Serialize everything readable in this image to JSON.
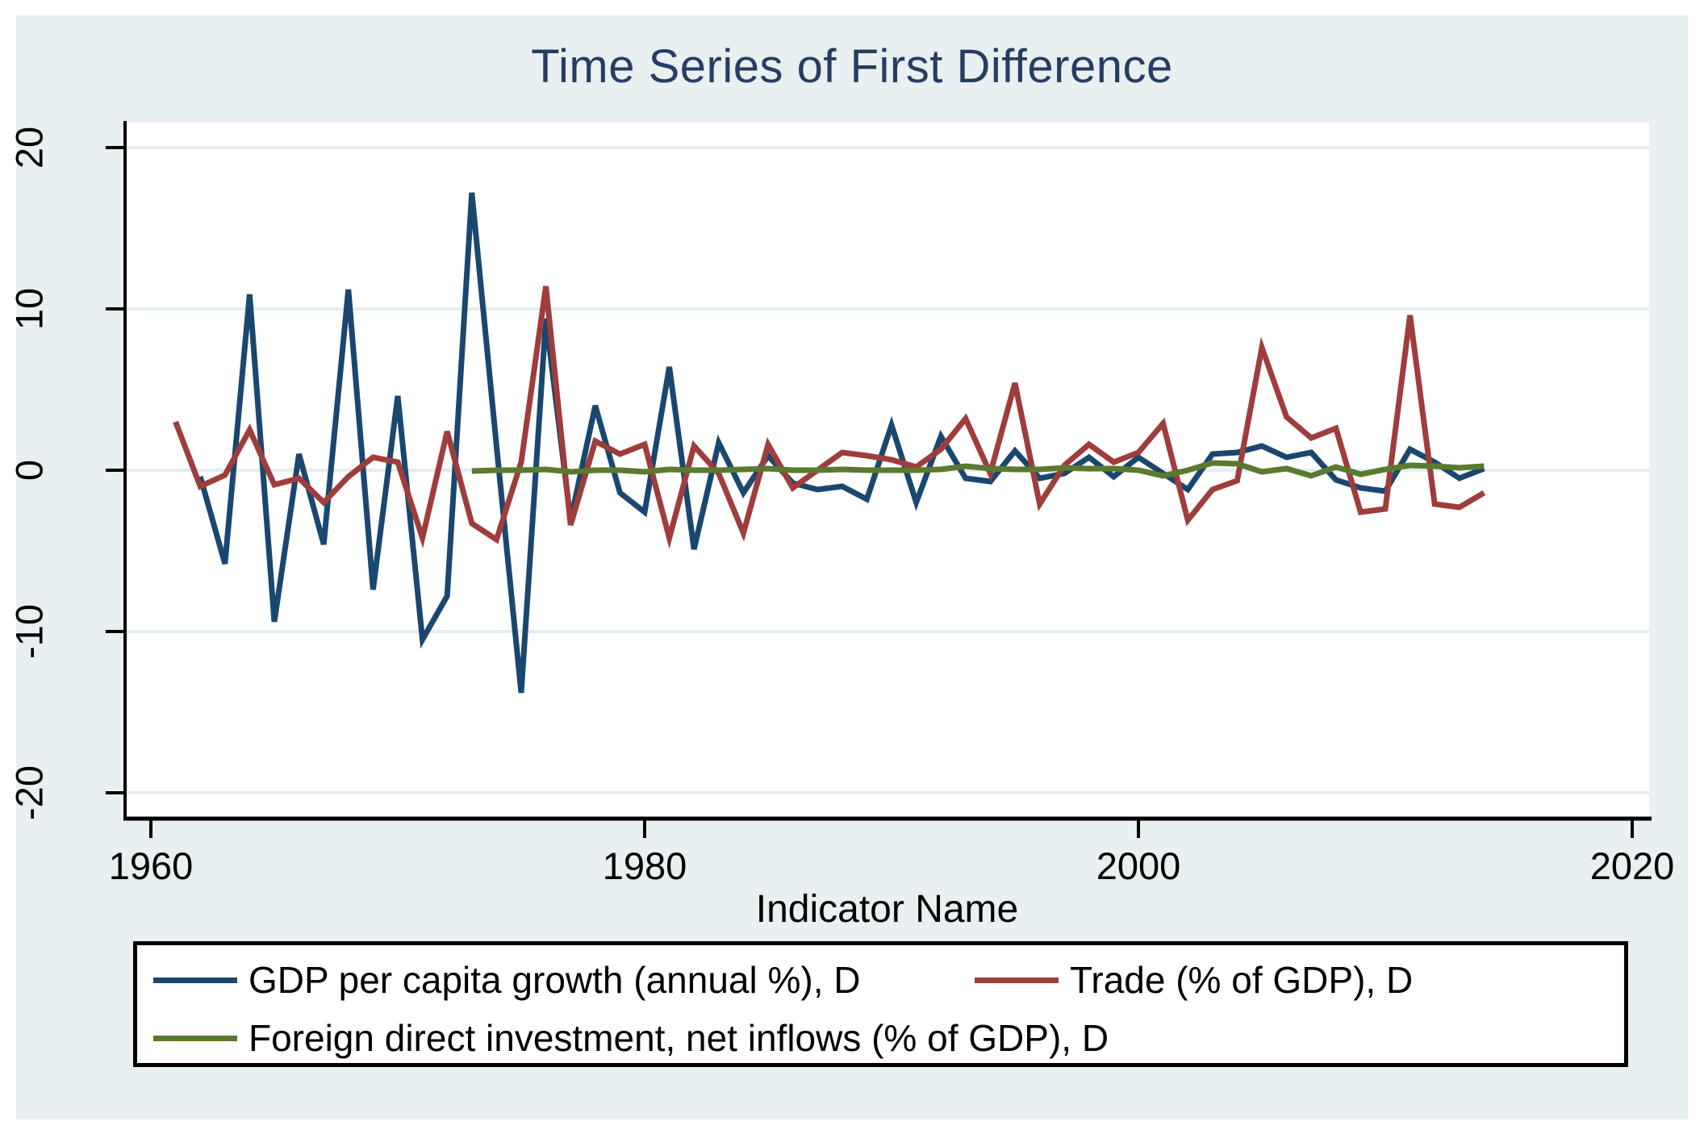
{
  "style": {
    "figure_bg": "#e9f0f2",
    "plot_bg": "#ffffff",
    "grid_color": "#e4edf0",
    "axis_color": "#000000",
    "title_color": "#263c63",
    "text_color": "#000000",
    "legend_bg": "#ffffff",
    "legend_border": "#000000"
  },
  "chart_data": {
    "type": "line",
    "title": "Time Series of First Difference",
    "xlabel": "Indicator Name",
    "ylabel": "",
    "xlim": [
      1959,
      2021
    ],
    "ylim": [
      -21.5,
      21.6
    ],
    "grid": "horizontal-only",
    "legend_position": "bottom",
    "x_ticks": [
      {
        "value": 1960,
        "label": "1960"
      },
      {
        "value": 1980,
        "label": "1980"
      },
      {
        "value": 2000,
        "label": "2000"
      },
      {
        "value": 2020,
        "label": "2020"
      }
    ],
    "y_ticks": [
      {
        "value": 20,
        "label": "20"
      },
      {
        "value": 10,
        "label": "10"
      },
      {
        "value": 0,
        "label": "0"
      },
      {
        "value": -10,
        "label": "-10"
      },
      {
        "value": -20,
        "label": "-20"
      }
    ],
    "series": [
      {
        "name": "GDP per capita growth (annual %), D",
        "color": "#1a476f",
        "start_year": 1962,
        "end_year": 2014,
        "values": [
          -0.4,
          -5.8,
          10.9,
          -9.4,
          1.0,
          -4.6,
          11.2,
          -7.4,
          4.6,
          -10.5,
          -7.8,
          17.2,
          1.5,
          -13.8,
          9.4,
          -3.1,
          4.0,
          -1.4,
          -2.6,
          6.4,
          -4.9,
          1.7,
          -1.4,
          0.9,
          -0.8,
          -1.2,
          -1.0,
          -1.8,
          2.8,
          -2.0,
          2.1,
          -0.5,
          -0.7,
          1.2,
          -0.5,
          -0.2,
          0.8,
          -0.4,
          0.8,
          -0.2,
          -1.2,
          1.0,
          1.1,
          1.5,
          0.8,
          1.1,
          -0.6,
          -1.1,
          -1.3,
          1.3,
          0.5,
          -0.5,
          0.1
        ]
      },
      {
        "name": "Trade (% of GDP), D",
        "color": "#9e3d3c",
        "start_year": 1961,
        "end_year": 2014,
        "values": [
          3.0,
          -1.0,
          -0.3,
          2.5,
          -0.9,
          -0.5,
          -2.0,
          -0.4,
          0.8,
          0.5,
          -4.2,
          2.4,
          -3.3,
          -4.3,
          0.5,
          11.4,
          -3.4,
          1.8,
          1.0,
          1.6,
          -4.2,
          1.5,
          -0.2,
          -3.9,
          1.6,
          -1.1,
          0.0,
          1.1,
          0.9,
          0.65,
          0.2,
          1.3,
          3.2,
          -0.2,
          5.4,
          -2.1,
          0.3,
          1.6,
          0.5,
          1.1,
          2.9,
          -3.1,
          -1.2,
          -0.65,
          7.6,
          3.3,
          2.0,
          2.6,
          -2.6,
          -2.4,
          9.6,
          -2.1,
          -2.3,
          -1.4
        ]
      },
      {
        "name": "Foreign direct investment, net inflows (% of GDP), D",
        "color": "#5a7a2e",
        "start_year": 1973,
        "end_year": 2014,
        "values": [
          -0.05,
          0.0,
          0.0,
          0.05,
          -0.1,
          0.0,
          0.0,
          -0.1,
          0.05,
          0.0,
          0.0,
          0.05,
          0.1,
          0.0,
          0.0,
          0.05,
          0.0,
          0.0,
          0.0,
          0.05,
          0.25,
          0.1,
          0.05,
          0.05,
          0.15,
          0.1,
          0.1,
          0.0,
          -0.35,
          0.0,
          0.45,
          0.4,
          -0.1,
          0.1,
          -0.35,
          0.2,
          -0.25,
          0.05,
          0.3,
          0.25,
          0.15,
          0.25
        ]
      }
    ]
  }
}
